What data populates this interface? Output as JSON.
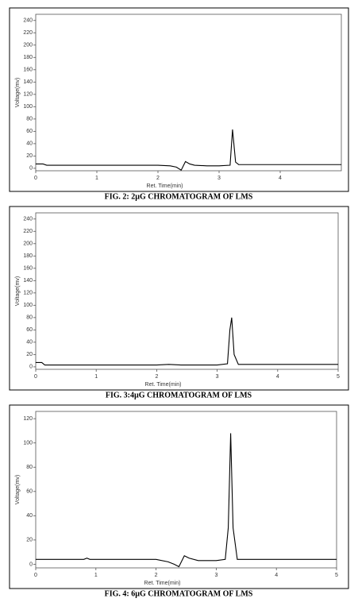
{
  "chart_data": [
    {
      "type": "line",
      "title": "FIG. 2: 2µG CHROMATOGRAM OF LMS",
      "x_label": "Ret. Time(min)",
      "y_label": "Voltage(mv)",
      "x": [
        0,
        0.12,
        0.18,
        1.0,
        2.0,
        2.2,
        2.3,
        2.38,
        2.45,
        2.52,
        2.6,
        2.8,
        3.0,
        3.18,
        3.22,
        3.27,
        3.32,
        3.4,
        4.0,
        5.0
      ],
      "values": [
        7,
        7,
        5,
        5,
        5,
        4,
        2,
        -3,
        11,
        7,
        5,
        4,
        4,
        5,
        63,
        10,
        6,
        6,
        6,
        6
      ],
      "color": "#000000",
      "xlim": [
        0,
        5
      ],
      "ylim": [
        -4,
        250
      ],
      "xticks": [
        0,
        1,
        2,
        3,
        4
      ],
      "yticks": [
        0,
        20,
        40,
        60,
        80,
        100,
        120,
        140,
        160,
        180,
        200,
        220,
        240
      ]
    },
    {
      "type": "line",
      "title": "FIG. 3:4µG CHROMATOGRAM OF LMS",
      "x_label": "Ret. Time(min)",
      "y_label": "Voltage(mv)",
      "x": [
        0,
        0.1,
        0.15,
        1,
        2,
        2.2,
        2.4,
        3.0,
        3.17,
        3.21,
        3.24,
        3.28,
        3.35,
        4,
        5
      ],
      "values": [
        7,
        7,
        3,
        3,
        3,
        4,
        3,
        3,
        5,
        60,
        80,
        20,
        4,
        4,
        4
      ],
      "color": "#000000",
      "xlim": [
        0,
        5
      ],
      "ylim": [
        -4,
        250
      ],
      "xticks": [
        0,
        1,
        2,
        3,
        4,
        5
      ],
      "yticks": [
        0,
        20,
        40,
        60,
        80,
        100,
        120,
        140,
        160,
        180,
        200,
        220,
        240
      ]
    },
    {
      "type": "line",
      "title": "FIG. 4: 6µG CHROMATOGRAM OF LMS",
      "x_label": "Ret. Time(min)",
      "y_label": "Voltage(mv)",
      "x": [
        0,
        0.8,
        0.85,
        0.9,
        2.0,
        2.2,
        2.3,
        2.38,
        2.47,
        2.55,
        2.7,
        3.0,
        3.15,
        3.2,
        3.24,
        3.28,
        3.35,
        4,
        5
      ],
      "values": [
        4,
        4,
        5,
        4,
        4,
        2,
        0,
        -2,
        7,
        5,
        3,
        3,
        4,
        30,
        108,
        30,
        4,
        4,
        4
      ],
      "color": "#000000",
      "xlim": [
        0,
        5
      ],
      "ylim": [
        -3,
        126
      ],
      "xticks": [
        0,
        1,
        2,
        3,
        4,
        5
      ],
      "yticks": [
        0,
        20,
        40,
        60,
        80,
        100,
        120
      ]
    }
  ]
}
